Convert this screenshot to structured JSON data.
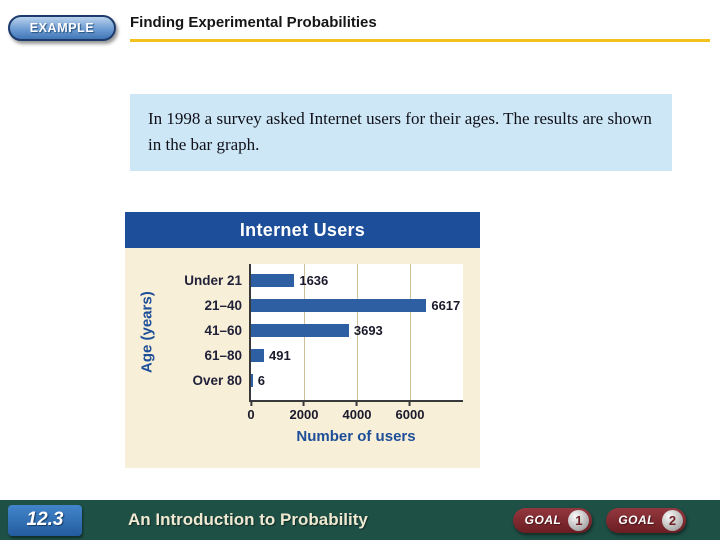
{
  "header": {
    "badge_label": "EXAMPLE",
    "title": "Finding Experimental Probabilities"
  },
  "prompt": {
    "text": "In 1998 a survey asked Internet users for their ages. The results are shown in the bar graph."
  },
  "chart_data": {
    "type": "bar",
    "orientation": "horizontal",
    "title": "Internet Users",
    "ylabel": "Age (years)",
    "xlabel": "Number of users",
    "categories": [
      "Under 21",
      "21–40",
      "41–60",
      "61–80",
      "Over 80"
    ],
    "values": [
      1636,
      6617,
      3693,
      491,
      6
    ],
    "value_labels": [
      "1636",
      "6617",
      "3693",
      "491",
      "6"
    ],
    "xlim": [
      0,
      8000
    ],
    "xticks": [
      0,
      2000,
      4000,
      6000
    ],
    "grid": true,
    "legend": false,
    "colors": {
      "bar": "#2e5fa3",
      "chart_header_bg": "#1d4e99",
      "chart_body_bg": "#f7efd7",
      "plot_bg": "#ffffff",
      "axis_label_text": "#1d4e99"
    }
  },
  "footer": {
    "section_number": "12.3",
    "section_title": "An Introduction to Probability",
    "goal_buttons": [
      {
        "label": "GOAL",
        "number": "1"
      },
      {
        "label": "GOAL",
        "number": "2"
      }
    ]
  },
  "accents": {
    "title_underline": "#f2c11e",
    "prompt_box_bg": "#cde7f7",
    "footer_bg": "#1e5046",
    "goal_button_bg": "#7b2127",
    "section_badge_bg": "#2a6ab5"
  }
}
